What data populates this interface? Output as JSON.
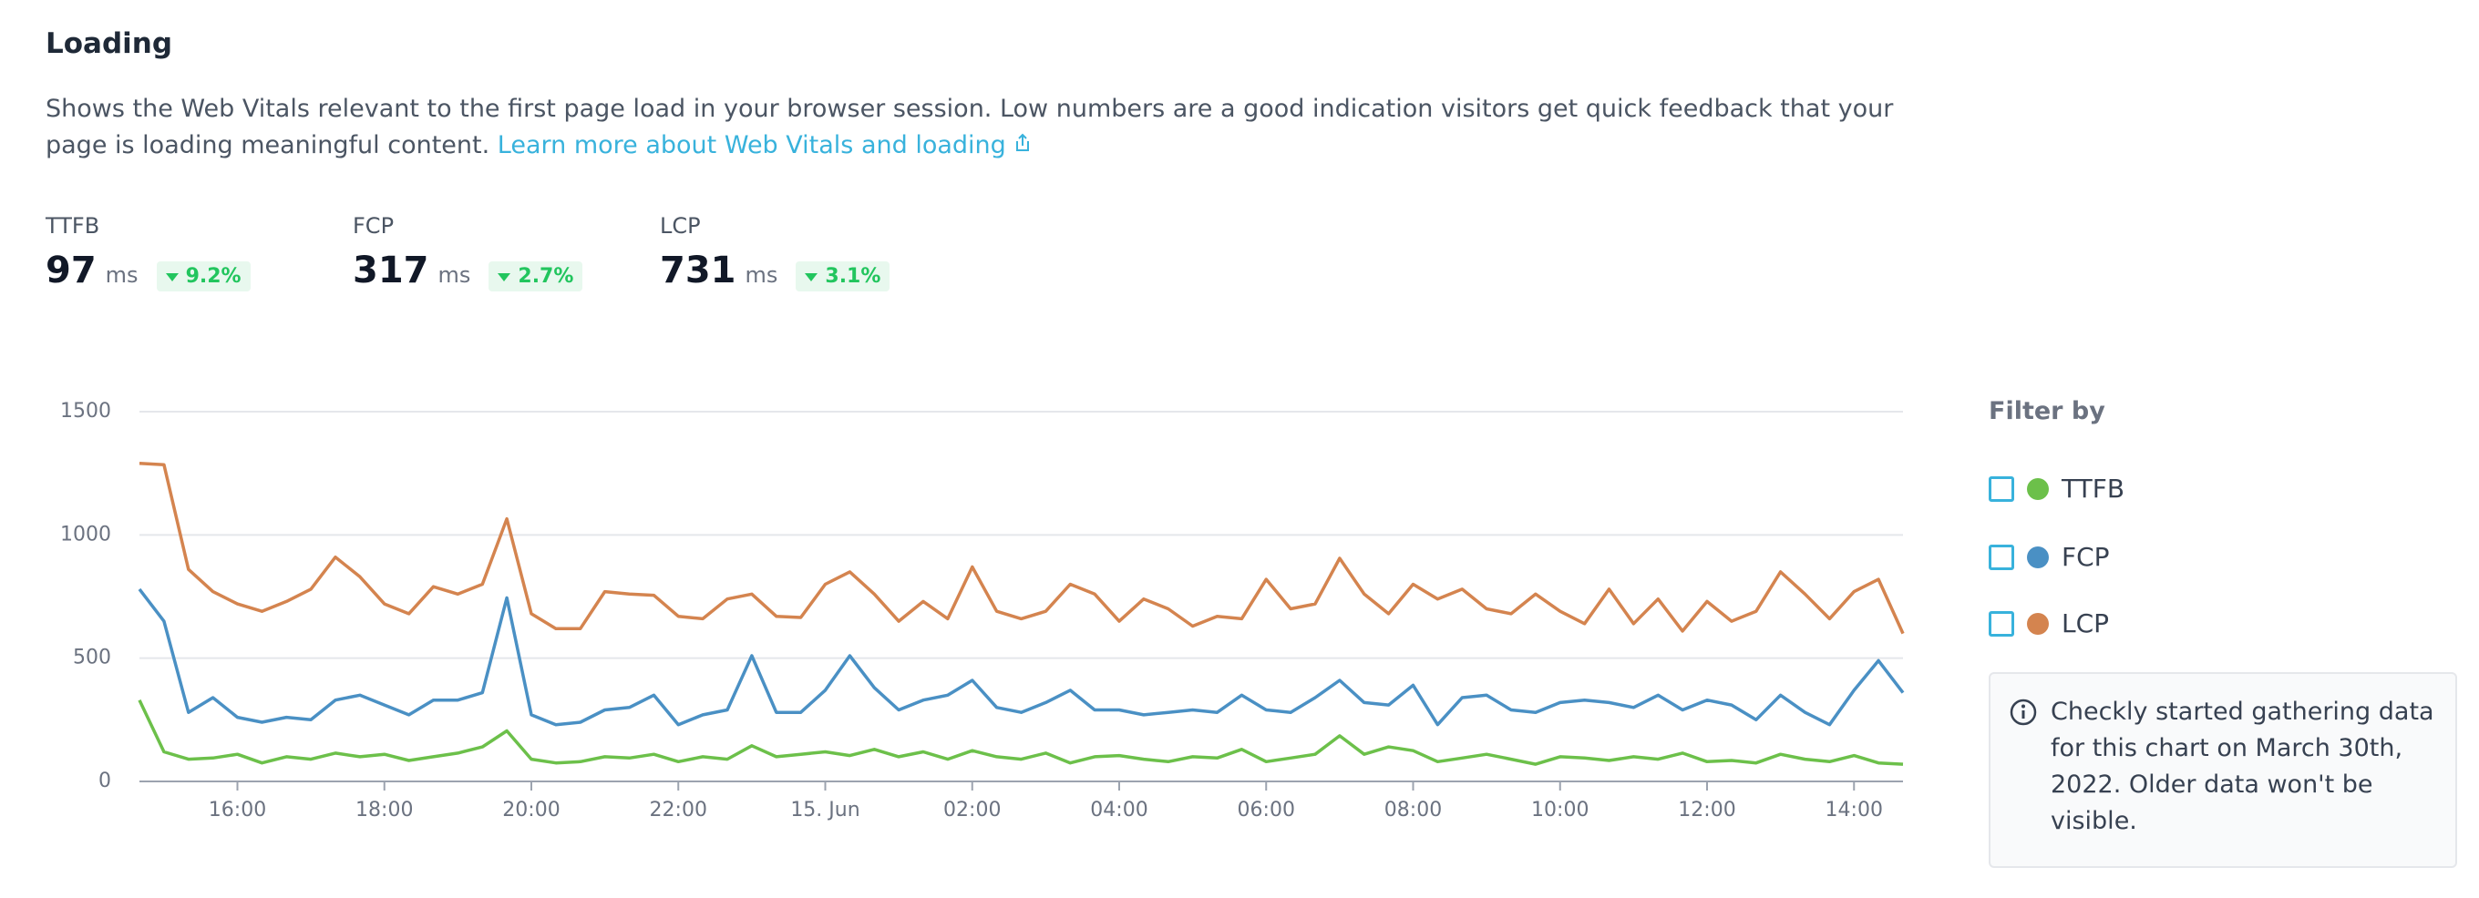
{
  "header": {
    "title": "Loading",
    "description": "Shows the Web Vitals relevant to the first page load in your browser session. Low numbers are a good indication visitors get quick feedback that your page is loading meaningful content.",
    "link": "Learn more about Web Vitals and loading"
  },
  "metrics": [
    {
      "label": "TTFB",
      "value": 97,
      "unit": "ms",
      "change": "9.2%"
    },
    {
      "label": "FCP",
      "value": 317,
      "unit": "ms",
      "change": "2.7%"
    },
    {
      "label": "LCP",
      "value": 731,
      "unit": "ms",
      "change": "3.1%"
    }
  ],
  "chart_data": {
    "type": "line",
    "categories": [
      null,
      null,
      null,
      null,
      "16:00",
      null,
      null,
      null,
      null,
      null,
      "18:00",
      null,
      null,
      null,
      null,
      null,
      "20:00",
      null,
      null,
      null,
      null,
      null,
      "22:00",
      null,
      null,
      null,
      null,
      null,
      "15. Jun",
      null,
      null,
      null,
      null,
      null,
      "02:00",
      null,
      null,
      null,
      null,
      null,
      "04:00",
      null,
      null,
      null,
      null,
      null,
      "06:00",
      null,
      null,
      null,
      null,
      null,
      "08:00",
      null,
      null,
      null,
      null,
      null,
      "10:00",
      null,
      null,
      null,
      null,
      null,
      "12:00",
      null,
      null,
      null,
      null,
      null,
      "14:00",
      null,
      null
    ],
    "series": [
      {
        "name": "TTFB",
        "color": "#6cc04a",
        "values": [
          330,
          120,
          90,
          95,
          110,
          75,
          100,
          90,
          115,
          100,
          110,
          85,
          100,
          115,
          140,
          205,
          90,
          75,
          80,
          100,
          95,
          110,
          80,
          100,
          90,
          145,
          100,
          110,
          120,
          105,
          130,
          100,
          120,
          90,
          125,
          100,
          90,
          115,
          75,
          100,
          105,
          90,
          80,
          100,
          95,
          130,
          80,
          95,
          110,
          185,
          110,
          140,
          125,
          80,
          95,
          110,
          90,
          70,
          100,
          95,
          85,
          100,
          90,
          115,
          80,
          85,
          75,
          110,
          90,
          80,
          105,
          75,
          70
        ]
      },
      {
        "name": "FCP",
        "color": "#4a90c4",
        "values": [
          780,
          650,
          280,
          340,
          260,
          240,
          260,
          250,
          330,
          350,
          310,
          270,
          330,
          330,
          360,
          745,
          270,
          230,
          240,
          290,
          300,
          350,
          230,
          270,
          290,
          510,
          280,
          280,
          370,
          510,
          380,
          290,
          330,
          350,
          410,
          300,
          280,
          320,
          370,
          290,
          290,
          270,
          280,
          290,
          280,
          350,
          290,
          280,
          340,
          410,
          320,
          310,
          390,
          230,
          340,
          350,
          290,
          280,
          320,
          330,
          320,
          300,
          350,
          290,
          330,
          310,
          250,
          350,
          280,
          230,
          370,
          490,
          360
        ]
      },
      {
        "name": "LCP",
        "color": "#d4844f",
        "values": [
          1290,
          1285,
          860,
          770,
          720,
          690,
          730,
          780,
          910,
          830,
          720,
          680,
          790,
          760,
          800,
          1065,
          680,
          620,
          620,
          770,
          760,
          755,
          670,
          660,
          740,
          760,
          670,
          665,
          800,
          850,
          760,
          650,
          730,
          660,
          870,
          690,
          660,
          690,
          800,
          760,
          650,
          740,
          700,
          630,
          670,
          660,
          820,
          700,
          720,
          905,
          760,
          680,
          800,
          740,
          780,
          700,
          680,
          760,
          690,
          640,
          780,
          640,
          740,
          610,
          730,
          650,
          690,
          850,
          760,
          660,
          770,
          820,
          600
        ]
      }
    ],
    "ylim": [
      0,
      1500
    ],
    "yticks": [
      0,
      500,
      1000,
      1500
    ],
    "grid": true
  },
  "filter": {
    "title": "Filter by"
  },
  "notice": "Checkly started gathering data for this chart on March 30th, 2022. Older data won't be visible."
}
